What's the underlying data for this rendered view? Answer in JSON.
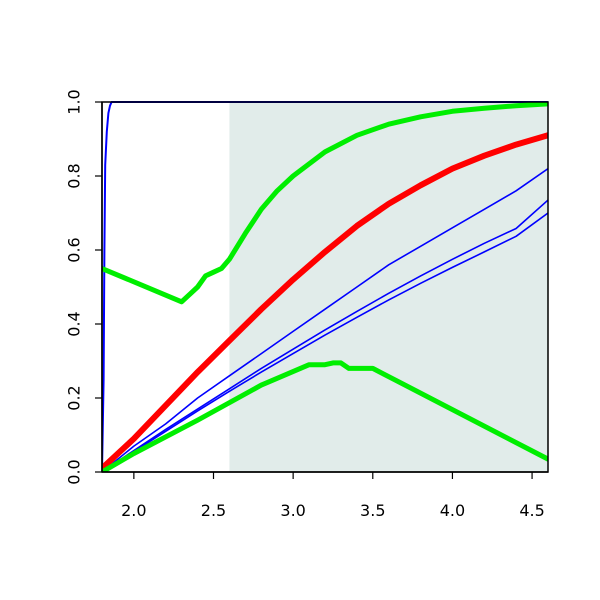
{
  "chart_data": {
    "type": "line",
    "title": "",
    "xlabel": "",
    "ylabel": "",
    "xlim": [
      1.8,
      4.6
    ],
    "ylim": [
      0.0,
      1.0
    ],
    "x_ticks": [
      {
        "value": 2.0,
        "label": "2.0"
      },
      {
        "value": 2.5,
        "label": "2.5"
      },
      {
        "value": 3.0,
        "label": "3.0"
      },
      {
        "value": 3.5,
        "label": "3.5"
      },
      {
        "value": 4.0,
        "label": "4.0"
      },
      {
        "value": 4.5,
        "label": "4.5"
      }
    ],
    "y_ticks": [
      {
        "value": 0.0,
        "label": "0.0"
      },
      {
        "value": 0.2,
        "label": "0.2"
      },
      {
        "value": 0.4,
        "label": "0.4"
      },
      {
        "value": 0.6,
        "label": "0.6"
      },
      {
        "value": 0.8,
        "label": "0.8"
      },
      {
        "value": 1.0,
        "label": "1.0"
      }
    ],
    "grid": false,
    "legend": "none",
    "shaded_region": {
      "x": [
        2.6,
        4.6
      ],
      "color": "#e1ecea"
    },
    "series": [
      {
        "color": "#0000ff",
        "width": 2,
        "x": [
          1.8,
          1.81,
          1.815,
          1.82,
          1.83,
          1.84,
          1.85,
          1.86,
          1.9,
          2.0,
          2.6,
          3.0,
          4.6
        ],
        "y": [
          0.0,
          0.25,
          0.6,
          0.83,
          0.92,
          0.97,
          0.99,
          1.0,
          1.0,
          1.0,
          1.0,
          1.0,
          1.0
        ]
      },
      {
        "color": "#0000ff",
        "width": 1.6,
        "x": [
          1.8,
          2.0,
          2.2,
          2.4,
          2.6,
          2.8,
          3.0,
          3.2,
          3.4,
          3.6,
          3.8,
          4.0,
          4.2,
          4.4,
          4.6
        ],
        "y": [
          0.0,
          0.07,
          0.13,
          0.2,
          0.26,
          0.32,
          0.38,
          0.44,
          0.5,
          0.56,
          0.61,
          0.66,
          0.71,
          0.76,
          0.82
        ]
      },
      {
        "color": "#0000ff",
        "width": 1.6,
        "x": [
          1.8,
          2.0,
          2.2,
          2.4,
          2.6,
          2.8,
          3.0,
          3.2,
          3.4,
          3.6,
          3.8,
          4.0,
          4.2,
          4.4,
          4.6
        ],
        "y": [
          0.0,
          0.058,
          0.115,
          0.17,
          0.225,
          0.28,
          0.332,
          0.384,
          0.434,
          0.483,
          0.53,
          0.575,
          0.618,
          0.658,
          0.735
        ]
      },
      {
        "color": "#0000ff",
        "width": 1.6,
        "x": [
          1.8,
          2.0,
          2.2,
          2.4,
          2.6,
          2.8,
          3.0,
          3.2,
          3.4,
          3.6,
          3.8,
          4.0,
          4.2,
          4.4,
          4.6
        ],
        "y": [
          0.0,
          0.055,
          0.11,
          0.165,
          0.218,
          0.27,
          0.32,
          0.37,
          0.418,
          0.465,
          0.51,
          0.553,
          0.595,
          0.637,
          0.7
        ]
      },
      {
        "color": "#ff0000",
        "width": 6,
        "x": [
          1.8,
          2.0,
          2.2,
          2.4,
          2.6,
          2.8,
          3.0,
          3.2,
          3.4,
          3.6,
          3.8,
          4.0,
          4.2,
          4.4,
          4.6
        ],
        "y": [
          0.01,
          0.09,
          0.18,
          0.27,
          0.355,
          0.44,
          0.52,
          0.595,
          0.665,
          0.725,
          0.775,
          0.82,
          0.855,
          0.885,
          0.91
        ]
      },
      {
        "color": "#00ee00",
        "width": 5,
        "x": [
          1.8,
          2.3,
          2.35,
          2.4,
          2.45,
          2.5,
          2.55,
          2.6,
          2.7,
          2.8,
          2.9,
          3.0,
          3.2,
          3.4,
          3.6,
          3.8,
          4.0,
          4.2,
          4.4,
          4.6
        ],
        "y": [
          0.55,
          0.46,
          0.48,
          0.5,
          0.53,
          0.54,
          0.55,
          0.575,
          0.645,
          0.71,
          0.76,
          0.8,
          0.865,
          0.91,
          0.94,
          0.96,
          0.975,
          0.983,
          0.99,
          0.995
        ]
      },
      {
        "color": "#00ee00",
        "width": 5,
        "x": [
          1.8,
          2.0,
          2.4,
          2.8,
          3.1,
          3.2,
          3.25,
          3.3,
          3.35,
          3.5,
          4.6
        ],
        "y": [
          0.0,
          0.05,
          0.14,
          0.235,
          0.29,
          0.29,
          0.295,
          0.295,
          0.28,
          0.28,
          0.035
        ]
      }
    ]
  }
}
